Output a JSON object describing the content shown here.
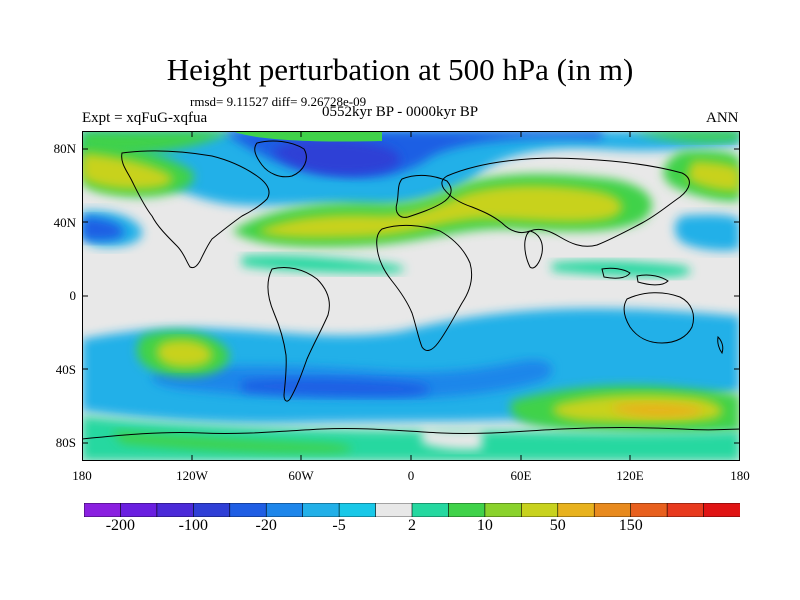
{
  "title": "Height perturbation at 500 hPa (in m)",
  "stats_line": "rmsd= 9.11527 diff= 9.26728e-09",
  "experiment": "Expt = xqFuG-xqfua",
  "period": "0552kyr BP - 0000kyr BP",
  "season": "ANN",
  "axes": {
    "lat_labels": [
      "80N",
      "40N",
      "0",
      "40S",
      "80S"
    ],
    "lon_labels": [
      "180",
      "120W",
      "60W",
      "0",
      "60E",
      "120E",
      "180"
    ]
  },
  "colorbar": {
    "colors": [
      "#8a20e0",
      "#6a1fe0",
      "#4b2ad8",
      "#2f3fd6",
      "#1f5ee4",
      "#1e86ea",
      "#22b0e8",
      "#19c8e8",
      "#e8e8e8",
      "#25d8a0",
      "#40d24a",
      "#8ad22c",
      "#c8d21e",
      "#e8b21e",
      "#e88a1e",
      "#e8601e",
      "#e83a1e",
      "#e01414"
    ],
    "labels": [
      {
        "text": "-200",
        "boundary": 1
      },
      {
        "text": "-100",
        "boundary": 3
      },
      {
        "text": "-20",
        "boundary": 5
      },
      {
        "text": "-5",
        "boundary": 7
      },
      {
        "text": "2",
        "boundary": 9
      },
      {
        "text": "10",
        "boundary": 11
      },
      {
        "text": "50",
        "boundary": 13
      },
      {
        "text": "150",
        "boundary": 15
      }
    ]
  }
}
